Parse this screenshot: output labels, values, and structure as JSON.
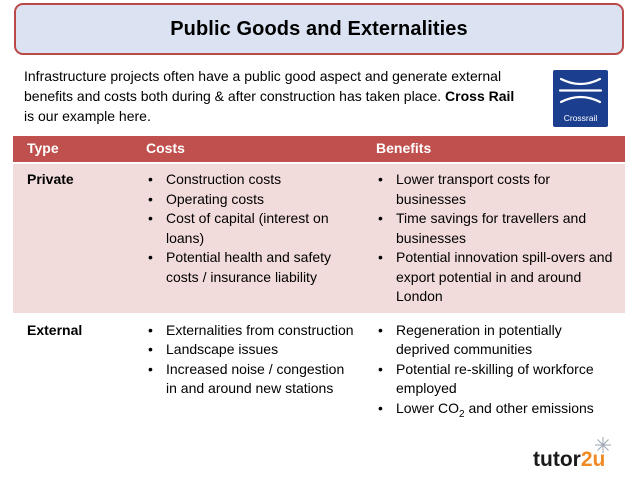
{
  "title": "Public Goods and Externalities",
  "intro": {
    "text_before": "Infrastructure projects often have a public good aspect and generate external benefits and costs both during & after construction has taken place. ",
    "bold": "Cross Rail",
    "text_after": " is our example here."
  },
  "logo": {
    "label": "Crossrail",
    "color": "#1b3e8e"
  },
  "table": {
    "headers": [
      "Type",
      "Costs",
      "Benefits"
    ],
    "rows": [
      {
        "type": "Private",
        "costs": [
          "Construction costs",
          "Operating costs",
          "Cost of capital (interest on loans)",
          "Potential health and safety costs / insurance liability"
        ],
        "benefits": [
          "Lower transport costs for businesses",
          "Time savings for travellers and businesses",
          "Potential innovation spill-overs and export potential in and around London"
        ]
      },
      {
        "type": "External",
        "costs": [
          "Externalities from construction",
          "Landscape issues",
          "Increased noise / congestion in and around new stations"
        ],
        "benefits": [
          "Regeneration in potentially deprived communities",
          "Potential re-skilling of workforce employed",
          "Lower CO2 and other emissions"
        ]
      }
    ]
  },
  "brand": {
    "text_main": "tutor",
    "text_accent": "2u",
    "accent_color": "#f08a24"
  },
  "colors": {
    "header": "#c0504d",
    "row_private": "#f2dcdb",
    "title_bg": "#dbe3f3",
    "title_border": "#b94a48"
  }
}
